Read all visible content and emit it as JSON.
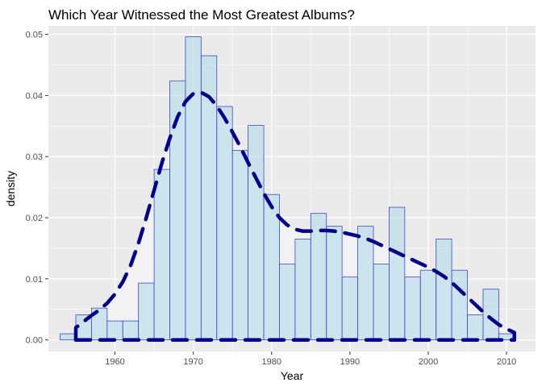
{
  "chart_data": {
    "type": "bar",
    "title": "Which Year Witnessed the Most Greatest Albums?",
    "xlabel": "Year",
    "ylabel": "density",
    "xlim": [
      1951.5,
      2013.7
    ],
    "ylim": [
      -0.0019,
      0.0514
    ],
    "x_ticks": [
      1960,
      1970,
      1980,
      1990,
      2000,
      2010
    ],
    "x_tick_labels": [
      "1960",
      "1970",
      "1980",
      "1990",
      "2000",
      "2010"
    ],
    "y_ticks": [
      0,
      0.01,
      0.02,
      0.03,
      0.04,
      0.05
    ],
    "y_tick_labels": [
      "0.00",
      "0.01",
      "0.02",
      "0.03",
      "0.04",
      "0.05"
    ],
    "grid": true,
    "legend": "none",
    "bin_width": 2,
    "series": [
      {
        "kind": "histogram",
        "bin_starts": [
          1953,
          1955,
          1957,
          1959,
          1961,
          1963,
          1965,
          1967,
          1969,
          1971,
          1973,
          1975,
          1977,
          1979,
          1981,
          1983,
          1985,
          1987,
          1989,
          1991,
          1993,
          1995,
          1997,
          1999,
          2001,
          2003,
          2005,
          2007,
          2009
        ],
        "values": [
          0.001,
          0.0041,
          0.0052,
          0.0031,
          0.0031,
          0.0093,
          0.0279,
          0.0424,
          0.0496,
          0.0465,
          0.0382,
          0.031,
          0.0351,
          0.0238,
          0.0124,
          0.0165,
          0.0207,
          0.0186,
          0.0103,
          0.0186,
          0.0124,
          0.0217,
          0.0103,
          0.0114,
          0.0165,
          0.0114,
          0.0041,
          0.0083,
          0.001
        ],
        "fill": "#add8e6",
        "stroke": "#3f48cc"
      },
      {
        "kind": "density",
        "x": [
          1955.0,
          1956.0,
          1957.0,
          1958.0,
          1959.0,
          1960.0,
          1961.0,
          1962.0,
          1963.0,
          1964.0,
          1965.0,
          1966.0,
          1967.0,
          1968.0,
          1969.0,
          1970.0,
          1971.0,
          1972.0,
          1973.0,
          1974.0,
          1975.0,
          1976.0,
          1977.0,
          1978.0,
          1979.0,
          1980.0,
          1981.0,
          1982.0,
          1983.0,
          1984.0,
          1985.0,
          1986.0,
          1987.0,
          1988.0,
          1989.0,
          1990.0,
          1991.0,
          1992.0,
          1993.0,
          1994.0,
          1995.0,
          1996.0,
          1997.0,
          1998.0,
          1999.0,
          2000.0,
          2001.0,
          2002.0,
          2003.0,
          2004.0,
          2005.0,
          2006.0,
          2007.0,
          2008.0,
          2009.0,
          2010.0,
          2011.0
        ],
        "y": [
          0.002,
          0.003,
          0.004,
          0.0049,
          0.006,
          0.0075,
          0.0095,
          0.0122,
          0.0158,
          0.02,
          0.0245,
          0.029,
          0.033,
          0.0365,
          0.039,
          0.0403,
          0.0405,
          0.0398,
          0.0383,
          0.0363,
          0.034,
          0.0316,
          0.029,
          0.0265,
          0.024,
          0.0218,
          0.02,
          0.0188,
          0.0181,
          0.0178,
          0.0178,
          0.0179,
          0.0179,
          0.0178,
          0.0176,
          0.0173,
          0.017,
          0.0166,
          0.0161,
          0.0155,
          0.0149,
          0.0143,
          0.0137,
          0.0131,
          0.0125,
          0.0119,
          0.0112,
          0.0104,
          0.0094,
          0.0082,
          0.007,
          0.0058,
          0.0046,
          0.0035,
          0.0025,
          0.0018,
          0.0012
        ],
        "fill": "#f2f2f5",
        "fill_opacity": 0.7,
        "stroke": "#00008b",
        "linetype": "dashed"
      }
    ],
    "colors": {
      "panel": "#ebebeb",
      "grid": "#ffffff",
      "density_fill": "#f2f2f5",
      "bar_fill": "#add8e6",
      "bar_stroke": "#3f48cc",
      "density_line": "#00008b"
    }
  }
}
